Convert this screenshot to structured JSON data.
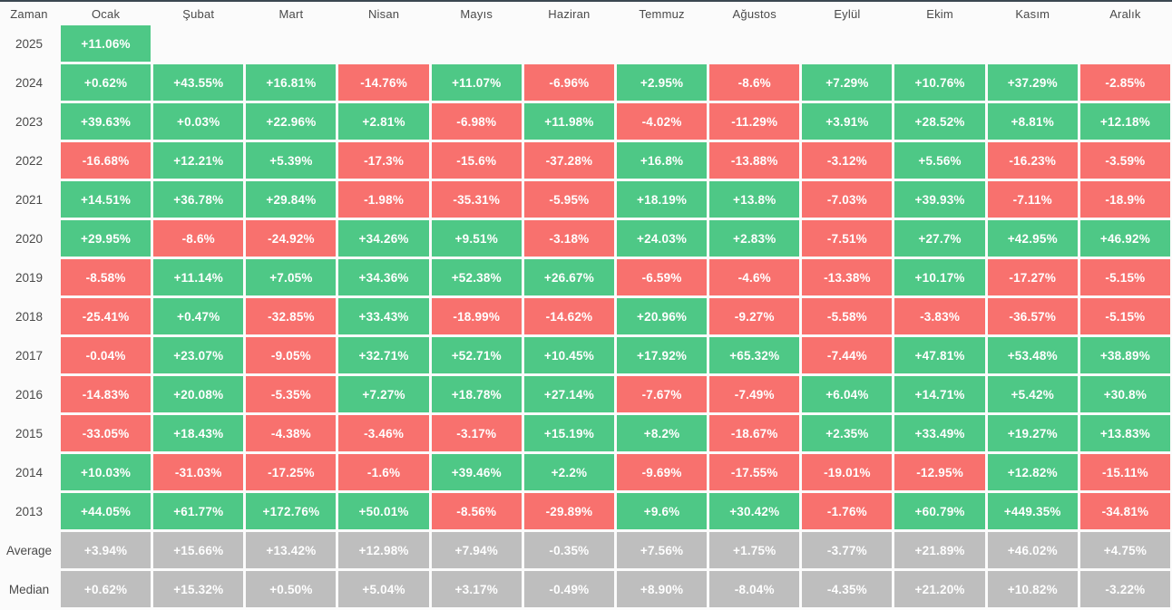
{
  "header": {
    "time_label": "Zaman",
    "months": [
      "Ocak",
      "Şubat",
      "Mart",
      "Nisan",
      "Mayıs",
      "Haziran",
      "Temmuz",
      "Ağustos",
      "Eylül",
      "Ekim",
      "Kasım",
      "Aralık"
    ]
  },
  "colors": {
    "positive": "#4ec886",
    "negative": "#f8716e",
    "neutral": "#bebebe",
    "cell_text": "#ffffff",
    "label_text": "#4a4a4a",
    "top_border": "#3b4751",
    "page_background": "#fbfbfb"
  },
  "chart_data": {
    "type": "heatmap",
    "title": "Monthly returns heatmap (Turkish month labels)",
    "columns": [
      "Ocak",
      "Şubat",
      "Mart",
      "Nisan",
      "Mayıs",
      "Haziran",
      "Temmuz",
      "Ağustos",
      "Eylül",
      "Ekim",
      "Kasım",
      "Aralık"
    ],
    "value_format": "percent-string",
    "color_rule": "green if value starts with +, red if value starts with -, gray for summary rows, blank cell if empty",
    "rows": [
      {
        "label": "2025",
        "summary": false,
        "values": [
          "+11.06%",
          "",
          "",
          "",
          "",
          "",
          "",
          "",
          "",
          "",
          "",
          ""
        ]
      },
      {
        "label": "2024",
        "summary": false,
        "values": [
          "+0.62%",
          "+43.55%",
          "+16.81%",
          "-14.76%",
          "+11.07%",
          "-6.96%",
          "+2.95%",
          "-8.6%",
          "+7.29%",
          "+10.76%",
          "+37.29%",
          "-2.85%"
        ]
      },
      {
        "label": "2023",
        "summary": false,
        "values": [
          "+39.63%",
          "+0.03%",
          "+22.96%",
          "+2.81%",
          "-6.98%",
          "+11.98%",
          "-4.02%",
          "-11.29%",
          "+3.91%",
          "+28.52%",
          "+8.81%",
          "+12.18%"
        ]
      },
      {
        "label": "2022",
        "summary": false,
        "values": [
          "-16.68%",
          "+12.21%",
          "+5.39%",
          "-17.3%",
          "-15.6%",
          "-37.28%",
          "+16.8%",
          "-13.88%",
          "-3.12%",
          "+5.56%",
          "-16.23%",
          "-3.59%"
        ]
      },
      {
        "label": "2021",
        "summary": false,
        "values": [
          "+14.51%",
          "+36.78%",
          "+29.84%",
          "-1.98%",
          "-35.31%",
          "-5.95%",
          "+18.19%",
          "+13.8%",
          "-7.03%",
          "+39.93%",
          "-7.11%",
          "-18.9%"
        ]
      },
      {
        "label": "2020",
        "summary": false,
        "values": [
          "+29.95%",
          "-8.6%",
          "-24.92%",
          "+34.26%",
          "+9.51%",
          "-3.18%",
          "+24.03%",
          "+2.83%",
          "-7.51%",
          "+27.7%",
          "+42.95%",
          "+46.92%"
        ]
      },
      {
        "label": "2019",
        "summary": false,
        "values": [
          "-8.58%",
          "+11.14%",
          "+7.05%",
          "+34.36%",
          "+52.38%",
          "+26.67%",
          "-6.59%",
          "-4.6%",
          "-13.38%",
          "+10.17%",
          "-17.27%",
          "-5.15%"
        ]
      },
      {
        "label": "2018",
        "summary": false,
        "values": [
          "-25.41%",
          "+0.47%",
          "-32.85%",
          "+33.43%",
          "-18.99%",
          "-14.62%",
          "+20.96%",
          "-9.27%",
          "-5.58%",
          "-3.83%",
          "-36.57%",
          "-5.15%"
        ]
      },
      {
        "label": "2017",
        "summary": false,
        "values": [
          "-0.04%",
          "+23.07%",
          "-9.05%",
          "+32.71%",
          "+52.71%",
          "+10.45%",
          "+17.92%",
          "+65.32%",
          "-7.44%",
          "+47.81%",
          "+53.48%",
          "+38.89%"
        ]
      },
      {
        "label": "2016",
        "summary": false,
        "values": [
          "-14.83%",
          "+20.08%",
          "-5.35%",
          "+7.27%",
          "+18.78%",
          "+27.14%",
          "-7.67%",
          "-7.49%",
          "+6.04%",
          "+14.71%",
          "+5.42%",
          "+30.8%"
        ]
      },
      {
        "label": "2015",
        "summary": false,
        "values": [
          "-33.05%",
          "+18.43%",
          "-4.38%",
          "-3.46%",
          "-3.17%",
          "+15.19%",
          "+8.2%",
          "-18.67%",
          "+2.35%",
          "+33.49%",
          "+19.27%",
          "+13.83%"
        ]
      },
      {
        "label": "2014",
        "summary": false,
        "values": [
          "+10.03%",
          "-31.03%",
          "-17.25%",
          "-1.6%",
          "+39.46%",
          "+2.2%",
          "-9.69%",
          "-17.55%",
          "-19.01%",
          "-12.95%",
          "+12.82%",
          "-15.11%"
        ]
      },
      {
        "label": "2013",
        "summary": false,
        "values": [
          "+44.05%",
          "+61.77%",
          "+172.76%",
          "+50.01%",
          "-8.56%",
          "-29.89%",
          "+9.6%",
          "+30.42%",
          "-1.76%",
          "+60.79%",
          "+449.35%",
          "-34.81%"
        ]
      },
      {
        "label": "Average",
        "summary": true,
        "values": [
          "+3.94%",
          "+15.66%",
          "+13.42%",
          "+12.98%",
          "+7.94%",
          "-0.35%",
          "+7.56%",
          "+1.75%",
          "-3.77%",
          "+21.89%",
          "+46.02%",
          "+4.75%"
        ]
      },
      {
        "label": "Median",
        "summary": true,
        "values": [
          "+0.62%",
          "+15.32%",
          "+0.50%",
          "+5.04%",
          "+3.17%",
          "-0.49%",
          "+8.90%",
          "-8.04%",
          "-4.35%",
          "+21.20%",
          "+10.82%",
          "-3.22%"
        ]
      }
    ]
  }
}
